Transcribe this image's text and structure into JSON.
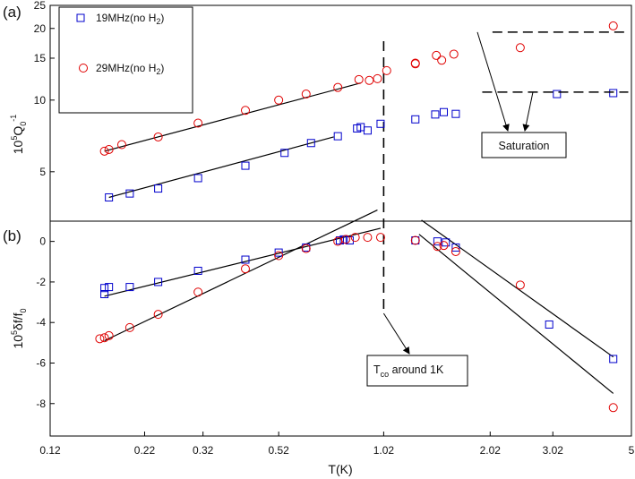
{
  "chart_data": {
    "type": "scatter",
    "panel_a": {
      "label": "(a)",
      "ylabel": {
        "base": "10",
        "exp": "5",
        "var": "Q",
        "sub": "0",
        "sup": "-1"
      },
      "yticks": [
        "5",
        "10",
        "15",
        "20",
        "25"
      ],
      "series": [
        {
          "name": "19MHz(no H2)",
          "label_main": "19MHz(no H",
          "label_sub": "2",
          "label_end": ")",
          "marker": "square",
          "color": "#0000cc",
          "points": [
            [
              0.175,
              3.9
            ],
            [
              0.2,
              4.05
            ],
            [
              0.24,
              4.25
            ],
            [
              0.31,
              4.7
            ],
            [
              0.42,
              5.3
            ],
            [
              0.54,
              6.0
            ],
            [
              0.64,
              6.6
            ],
            [
              0.76,
              7.05
            ],
            [
              0.86,
              7.6
            ],
            [
              0.88,
              7.7
            ],
            [
              0.92,
              7.45
            ],
            [
              1.0,
              7.95
            ],
            [
              1.25,
              8.3
            ],
            [
              1.42,
              8.7
            ],
            [
              1.5,
              8.9
            ],
            [
              1.62,
              8.75
            ],
            [
              3.1,
              10.6
            ],
            [
              4.45,
              10.7
            ]
          ]
        },
        {
          "name": "29MHz(no H2)",
          "label_main": "29MHz(no H",
          "label_sub": "2",
          "label_end": ")",
          "marker": "circle",
          "color": "#e00000",
          "points": [
            [
              0.17,
              6.1
            ],
            [
              0.175,
              6.2
            ],
            [
              0.19,
              6.5
            ],
            [
              0.24,
              7.0
            ],
            [
              0.31,
              8.0
            ],
            [
              0.42,
              9.05
            ],
            [
              0.52,
              10.0
            ],
            [
              0.62,
              10.6
            ],
            [
              0.76,
              11.3
            ],
            [
              0.87,
              12.2
            ],
            [
              0.93,
              12.1
            ],
            [
              0.98,
              12.3
            ],
            [
              1.04,
              13.3
            ],
            [
              1.25,
              14.2
            ],
            [
              1.25,
              14.3
            ],
            [
              1.43,
              15.4
            ],
            [
              1.48,
              14.7
            ],
            [
              1.6,
              15.6
            ],
            [
              2.45,
              16.6
            ],
            [
              4.45,
              20.5
            ]
          ]
        }
      ],
      "fit_lines": [
        {
          "series": "19MHz(no H2)",
          "from": [
            0.175,
            3.9
          ],
          "to": [
            0.74,
            7.0
          ]
        },
        {
          "series": "29MHz(no H2)",
          "from": [
            0.17,
            6.1
          ],
          "to": [
            0.88,
            11.8
          ]
        }
      ],
      "saturation_levels": [
        {
          "series": "29MHz(no H2)",
          "value": 19.3,
          "from_x": 2.05,
          "to_x": 4.9
        },
        {
          "series": "19MHz(no H2)",
          "value": 10.8,
          "from_x": 1.92,
          "to_x": 4.9
        }
      ],
      "annotation": "Saturation"
    },
    "panel_b": {
      "label": "(b)",
      "ylabel": {
        "base": "10",
        "exp": "5",
        "var": "δf/f",
        "sub": "0"
      },
      "yticks": [
        "0",
        "-2",
        "-4",
        "-6",
        "-8"
      ],
      "series": [
        {
          "name": "19MHz(no H2)",
          "marker": "square",
          "color": "#0000cc",
          "points": [
            [
              0.17,
              -2.6
            ],
            [
              0.17,
              -2.3
            ],
            [
              0.175,
              -2.25
            ],
            [
              0.2,
              -2.25
            ],
            [
              0.24,
              -2.0
            ],
            [
              0.31,
              -1.45
            ],
            [
              0.42,
              -0.9
            ],
            [
              0.52,
              -0.55
            ],
            [
              0.62,
              -0.3
            ],
            [
              0.77,
              0.05
            ],
            [
              0.79,
              0.1
            ],
            [
              0.82,
              0.05
            ],
            [
              1.25,
              0.05
            ],
            [
              1.44,
              0.0
            ],
            [
              1.52,
              -0.05
            ],
            [
              1.62,
              -0.3
            ],
            [
              2.95,
              -4.1
            ],
            [
              4.45,
              -5.8
            ]
          ]
        },
        {
          "name": "29MHz(no H2)",
          "marker": "circle",
          "color": "#e00000",
          "points": [
            [
              0.165,
              -4.8
            ],
            [
              0.17,
              -4.75
            ],
            [
              0.175,
              -4.65
            ],
            [
              0.2,
              -4.25
            ],
            [
              0.24,
              -3.6
            ],
            [
              0.31,
              -2.5
            ],
            [
              0.42,
              -1.35
            ],
            [
              0.52,
              -0.7
            ],
            [
              0.62,
              -0.35
            ],
            [
              0.76,
              0.0
            ],
            [
              0.8,
              0.1
            ],
            [
              0.85,
              0.2
            ],
            [
              0.92,
              0.2
            ],
            [
              1.0,
              0.2
            ],
            [
              1.25,
              0.05
            ],
            [
              1.44,
              -0.25
            ],
            [
              1.5,
              -0.2
            ],
            [
              1.62,
              -0.5
            ],
            [
              2.45,
              -2.15
            ],
            [
              4.45,
              -8.2
            ]
          ]
        }
      ],
      "fit_lines": [
        {
          "series": "19MHz(no H2)",
          "from": [
            0.17,
            -2.7
          ],
          "to": [
            1.0,
            0.65
          ]
        },
        {
          "series": "29MHz(no H2)",
          "from": [
            0.17,
            -4.9
          ],
          "to": [
            0.98,
            1.55
          ]
        },
        {
          "series": "19MHz(no H2)",
          "from": [
            1.3,
            1.05
          ],
          "to": [
            4.45,
            -5.7
          ]
        },
        {
          "series": "29MHz(no H2)",
          "from": [
            1.28,
            0.35
          ],
          "to": [
            4.45,
            -7.5
          ]
        }
      ],
      "annotation": {
        "text": "T",
        "sub": "co",
        "rest": " around 1K"
      }
    },
    "crossover_x": 1.02,
    "x_scale": "log",
    "xlabel": "T(K)",
    "xlim": [
      0.12,
      5
    ],
    "xticks": [
      "0.12",
      "0.22",
      "0.32",
      "0.52",
      "1.02",
      "2.02",
      "3.02",
      "5"
    ],
    "ylim_a": [
      3.1,
      25
    ],
    "ylim_b": [
      -9.6,
      1.0
    ]
  }
}
